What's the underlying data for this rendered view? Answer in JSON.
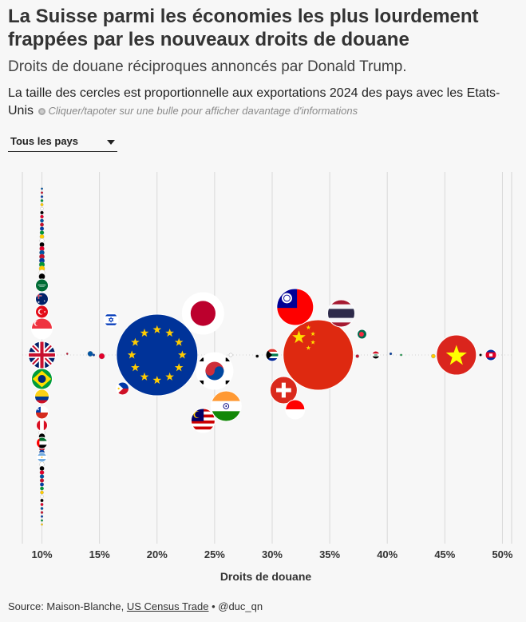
{
  "header": {
    "title": "La Suisse parmi les économies les plus lourdement frappées par les nouveaux droits de douane",
    "subtitle": "Droits de douane réciproques annoncés par Donald Trump.",
    "description": "La taille des cercles est proportionnelle aux exportations 2024 des pays avec les Etats-Unis",
    "hint": "Cliquer/tapoter sur une bulle pour afficher davantage d'informations"
  },
  "filter": {
    "selected": "Tous les pays"
  },
  "footer": {
    "source_prefix": "Source: Maison-Blanche, ",
    "source_link": "US Census Trade",
    "source_suffix": " • @duc_qn"
  },
  "chart_data": {
    "type": "scatter",
    "xlabel": "Droits de douane",
    "xlim": [
      8.3,
      50.8
    ],
    "x_ticks": [
      "10%",
      "15%",
      "20%",
      "25%",
      "30%",
      "35%",
      "40%",
      "45%",
      "50%"
    ],
    "x_tick_values": [
      10,
      15,
      20,
      25,
      30,
      35,
      40,
      45,
      50
    ],
    "grid": true,
    "bubbles": [
      {
        "flag": "eu",
        "tariff": 20,
        "size": 51
      },
      {
        "flag": "china",
        "tariff": 34,
        "size": 44
      },
      {
        "flag": "vietnam",
        "tariff": 46,
        "size": 25
      },
      {
        "flag": "japan",
        "tariff": 24,
        "size": 26
      },
      {
        "flag": "taiwan",
        "tariff": 32,
        "size": 23
      },
      {
        "flag": "korea",
        "tariff": 25,
        "size": 23
      },
      {
        "flag": "india",
        "tariff": 26,
        "size": 19
      },
      {
        "flag": "thailand",
        "tariff": 36,
        "size": 17
      },
      {
        "flag": "switzerland",
        "tariff": 31,
        "size": 17
      },
      {
        "flag": "malaysia",
        "tariff": 24,
        "size": 15
      },
      {
        "flag": "indonesia",
        "tariff": 32,
        "size": 12
      },
      {
        "flag": "israel",
        "tariff": 17,
        "size": 9
      },
      {
        "flag": "philippines",
        "tariff": 17,
        "size": 8
      },
      {
        "flag": "southafrica",
        "tariff": 30,
        "size": 8
      },
      {
        "flag": "cambodia",
        "tariff": 49,
        "size": 7
      },
      {
        "flag": "bangladesh",
        "tariff": 37,
        "size": 6
      },
      {
        "flag": "iraq",
        "tariff": 39,
        "size": 5
      },
      {
        "flag": "uk",
        "tariff": 10,
        "size": 17
      },
      {
        "flag": "singapore",
        "tariff": 10,
        "size": 13
      },
      {
        "flag": "brazil",
        "tariff": 10,
        "size": 13
      },
      {
        "flag": "colombia",
        "tariff": 10,
        "size": 9
      },
      {
        "flag": "turkey",
        "tariff": 10,
        "size": 8
      },
      {
        "flag": "australia",
        "tariff": 10,
        "size": 8
      },
      {
        "flag": "saudi",
        "tariff": 10,
        "size": 8
      },
      {
        "flag": "chile",
        "tariff": 10,
        "size": 8
      },
      {
        "flag": "uae",
        "tariff": 10,
        "size": 7
      },
      {
        "flag": "peru",
        "tariff": 10,
        "size": 7
      },
      {
        "flag": "argentina",
        "tariff": 10,
        "size": 6
      }
    ]
  }
}
